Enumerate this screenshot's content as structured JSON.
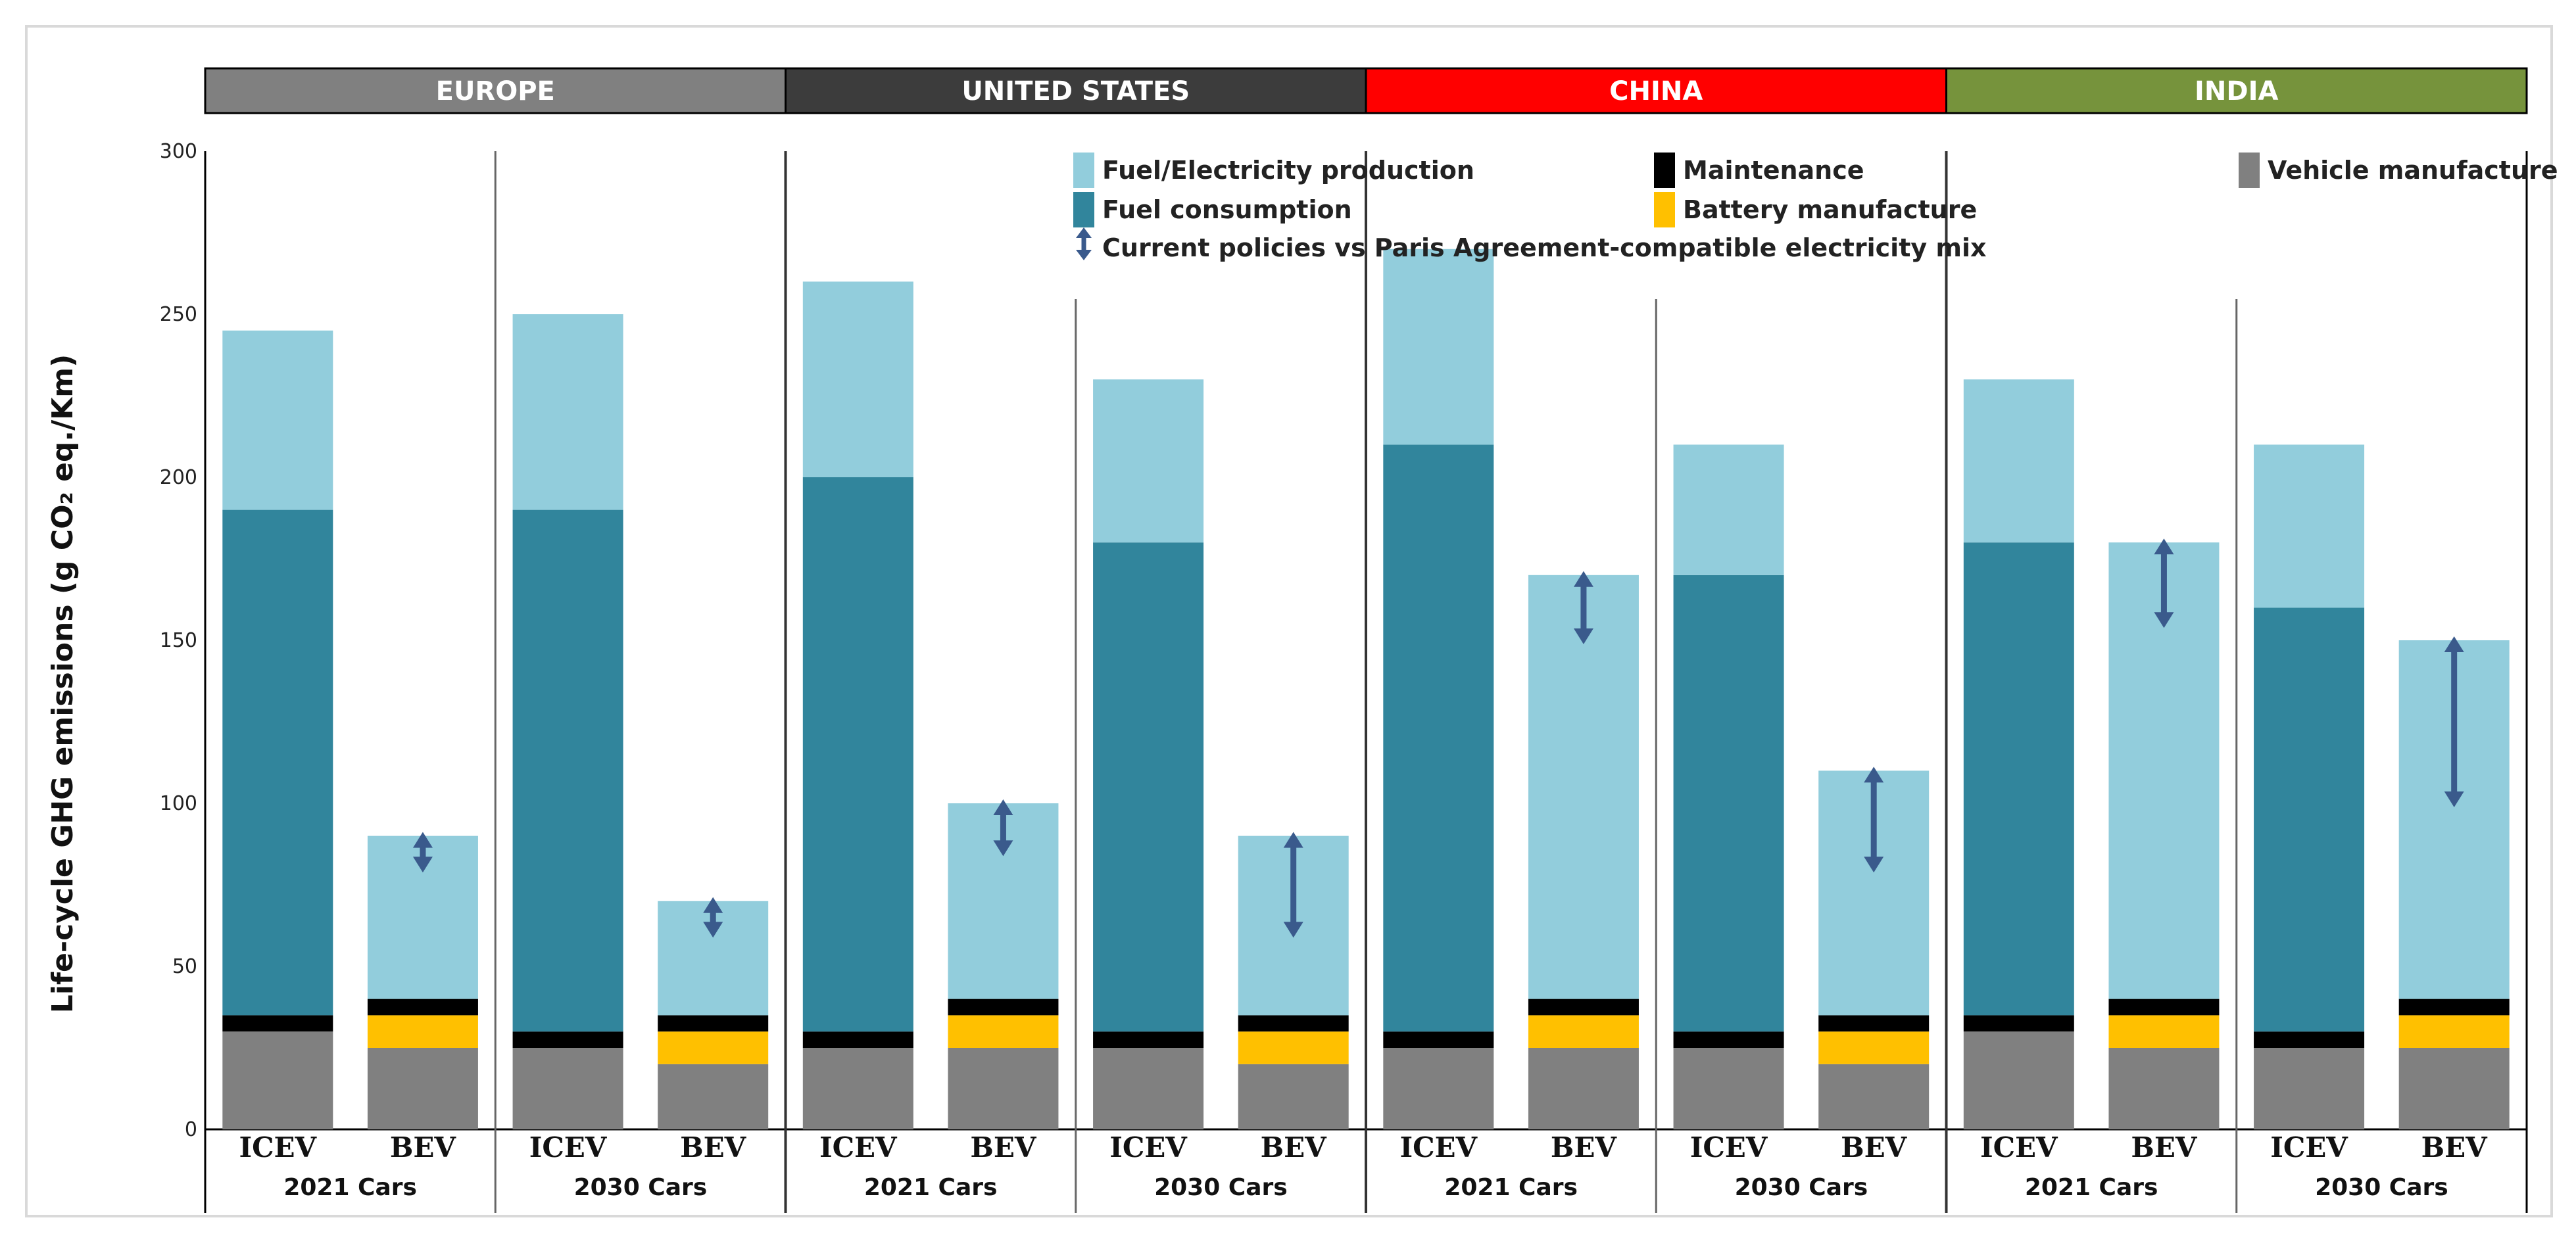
{
  "chart_data": {
    "type": "bar",
    "stacked": true,
    "ylabel": "Life-cycle GHG emissions (g CO₂ eq./Km)",
    "ylim": [
      0,
      300
    ],
    "yticks": [
      0,
      50,
      100,
      150,
      200,
      250,
      300
    ],
    "regions": [
      {
        "name": "EUROPE",
        "color": "#808080"
      },
      {
        "name": "UNITED STATES",
        "color": "#3c3c3c"
      },
      {
        "name": "CHINA",
        "color": "#ff0000"
      },
      {
        "name": "INDIA",
        "color": "#76933c"
      }
    ],
    "group_labels": [
      "2021 Cars",
      "2030 Cars"
    ],
    "vehicle_labels": [
      "ICEV",
      "BEV"
    ],
    "series": [
      {
        "name": "Fuel/Electricity production",
        "color": "#92cddc"
      },
      {
        "name": "Fuel consumption",
        "color": "#31859c"
      },
      {
        "name": "Maintenance",
        "color": "#000000"
      },
      {
        "name": "Battery manufacture",
        "color": "#ffc000"
      },
      {
        "name": "Vehicle manufacture",
        "color": "#808080"
      }
    ],
    "arrow_legend": "Current policies vs Paris Agreement-compatible electricity mix",
    "bars": [
      {
        "region": "EUROPE",
        "group": "2021 Cars",
        "vehicle": "ICEV",
        "vehicle_manufacture": 30,
        "battery_manufacture": 0,
        "maintenance": 5,
        "fuel_consumption": 155,
        "fuel_electricity_production": 55,
        "arrow": null
      },
      {
        "region": "EUROPE",
        "group": "2021 Cars",
        "vehicle": "BEV",
        "vehicle_manufacture": 25,
        "battery_manufacture": 10,
        "maintenance": 5,
        "fuel_consumption": 0,
        "fuel_electricity_production": 50,
        "arrow": [
          90,
          80
        ]
      },
      {
        "region": "EUROPE",
        "group": "2030 Cars",
        "vehicle": "ICEV",
        "vehicle_manufacture": 25,
        "battery_manufacture": 0,
        "maintenance": 5,
        "fuel_consumption": 160,
        "fuel_electricity_production": 60,
        "arrow": null
      },
      {
        "region": "EUROPE",
        "group": "2030 Cars",
        "vehicle": "BEV",
        "vehicle_manufacture": 20,
        "battery_manufacture": 10,
        "maintenance": 5,
        "fuel_consumption": 0,
        "fuel_electricity_production": 35,
        "arrow": [
          70,
          60
        ]
      },
      {
        "region": "UNITED STATES",
        "group": "2021 Cars",
        "vehicle": "ICEV",
        "vehicle_manufacture": 25,
        "battery_manufacture": 0,
        "maintenance": 5,
        "fuel_consumption": 170,
        "fuel_electricity_production": 60,
        "arrow": null
      },
      {
        "region": "UNITED STATES",
        "group": "2021 Cars",
        "vehicle": "BEV",
        "vehicle_manufacture": 25,
        "battery_manufacture": 10,
        "maintenance": 5,
        "fuel_consumption": 0,
        "fuel_electricity_production": 60,
        "arrow": [
          100,
          85
        ]
      },
      {
        "region": "UNITED STATES",
        "group": "2030 Cars",
        "vehicle": "ICEV",
        "vehicle_manufacture": 25,
        "battery_manufacture": 0,
        "maintenance": 5,
        "fuel_consumption": 150,
        "fuel_electricity_production": 50,
        "arrow": null
      },
      {
        "region": "UNITED STATES",
        "group": "2030 Cars",
        "vehicle": "BEV",
        "vehicle_manufacture": 20,
        "battery_manufacture": 10,
        "maintenance": 5,
        "fuel_consumption": 0,
        "fuel_electricity_production": 55,
        "arrow": [
          90,
          60
        ]
      },
      {
        "region": "CHINA",
        "group": "2021 Cars",
        "vehicle": "ICEV",
        "vehicle_manufacture": 25,
        "battery_manufacture": 0,
        "maintenance": 5,
        "fuel_consumption": 180,
        "fuel_electricity_production": 60,
        "arrow": null
      },
      {
        "region": "CHINA",
        "group": "2021 Cars",
        "vehicle": "BEV",
        "vehicle_manufacture": 25,
        "battery_manufacture": 10,
        "maintenance": 5,
        "fuel_consumption": 0,
        "fuel_electricity_production": 130,
        "arrow": [
          170,
          150
        ]
      },
      {
        "region": "CHINA",
        "group": "2030 Cars",
        "vehicle": "ICEV",
        "vehicle_manufacture": 25,
        "battery_manufacture": 0,
        "maintenance": 5,
        "fuel_consumption": 140,
        "fuel_electricity_production": 40,
        "arrow": null
      },
      {
        "region": "CHINA",
        "group": "2030 Cars",
        "vehicle": "BEV",
        "vehicle_manufacture": 20,
        "battery_manufacture": 10,
        "maintenance": 5,
        "fuel_consumption": 0,
        "fuel_electricity_production": 75,
        "arrow": [
          110,
          80
        ]
      },
      {
        "region": "INDIA",
        "group": "2021 Cars",
        "vehicle": "ICEV",
        "vehicle_manufacture": 30,
        "battery_manufacture": 0,
        "maintenance": 5,
        "fuel_consumption": 145,
        "fuel_electricity_production": 50,
        "arrow": null
      },
      {
        "region": "INDIA",
        "group": "2021 Cars",
        "vehicle": "BEV",
        "vehicle_manufacture": 25,
        "battery_manufacture": 10,
        "maintenance": 5,
        "fuel_consumption": 0,
        "fuel_electricity_production": 140,
        "arrow": [
          180,
          155
        ]
      },
      {
        "region": "INDIA",
        "group": "2030 Cars",
        "vehicle": "ICEV",
        "vehicle_manufacture": 25,
        "battery_manufacture": 0,
        "maintenance": 5,
        "fuel_consumption": 130,
        "fuel_electricity_production": 50,
        "arrow": null
      },
      {
        "region": "INDIA",
        "group": "2030 Cars",
        "vehicle": "BEV",
        "vehicle_manufacture": 25,
        "battery_manufacture": 10,
        "maintenance": 5,
        "fuel_consumption": 0,
        "fuel_electricity_production": 110,
        "arrow": [
          150,
          100
        ]
      }
    ]
  }
}
